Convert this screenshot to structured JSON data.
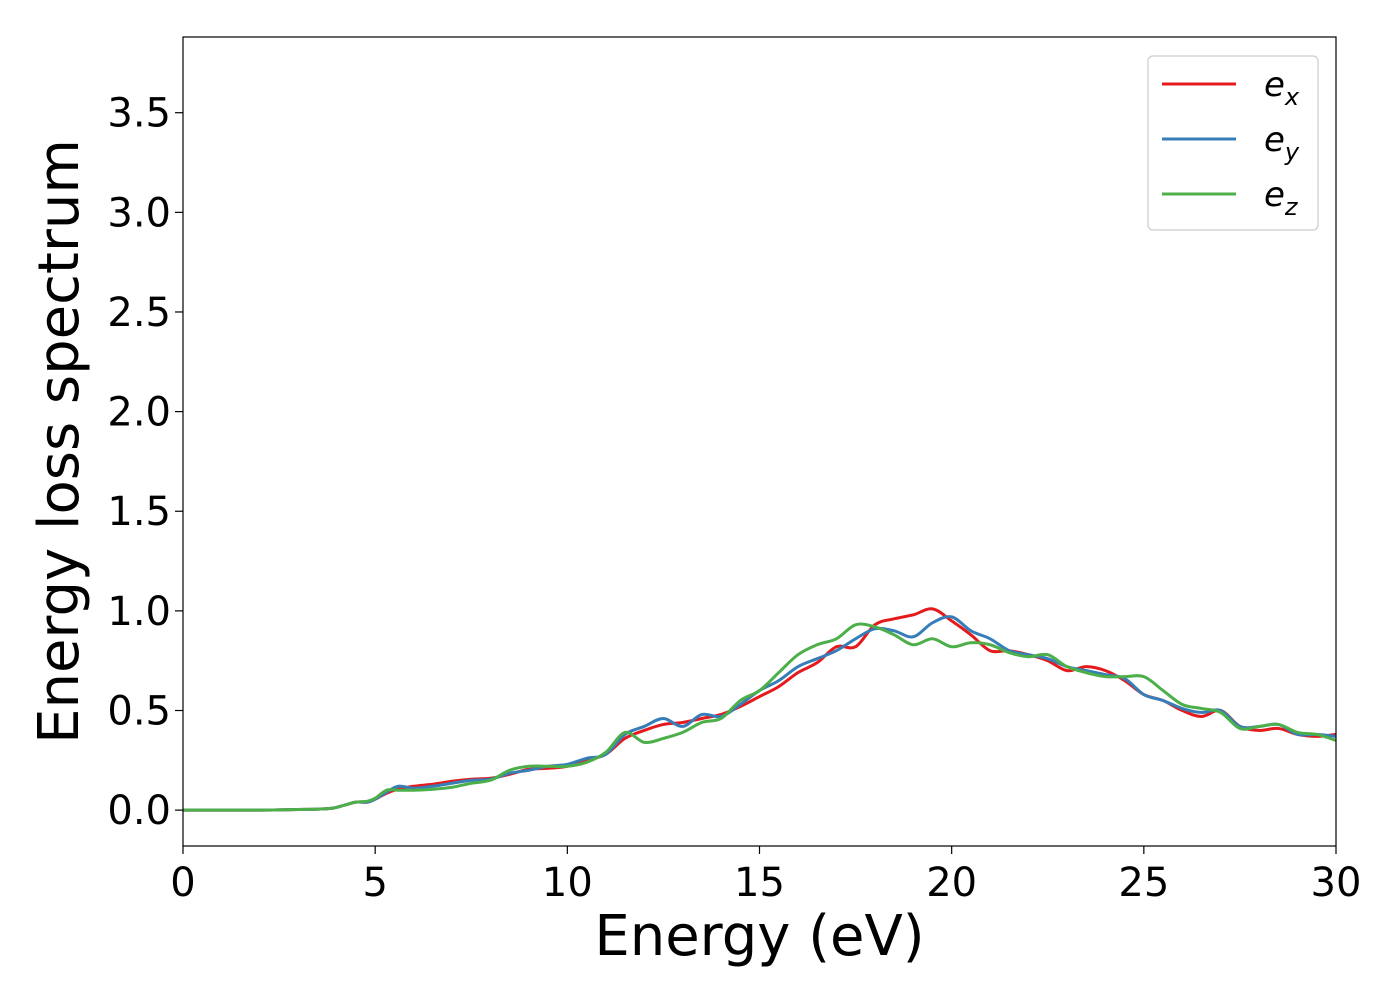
{
  "chart_data": {
    "type": "line",
    "title": "",
    "xlabel": "Energy (eV)",
    "ylabel": "Energy loss spectrum",
    "xlim": [
      0,
      30
    ],
    "ylim": [
      -0.18,
      3.88
    ],
    "xticks": [
      0,
      5,
      10,
      15,
      20,
      25,
      30
    ],
    "xtick_labels": [
      "0",
      "5",
      "10",
      "15",
      "20",
      "25",
      "30"
    ],
    "yticks": [
      0.0,
      0.5,
      1.0,
      1.5,
      2.0,
      2.5,
      3.0,
      3.5
    ],
    "ytick_labels": [
      "0.0",
      "0.5",
      "1.0",
      "1.5",
      "2.0",
      "2.5",
      "3.0",
      "3.5"
    ],
    "grid": false,
    "legend_position": "top-right",
    "x": [
      0,
      1,
      2,
      3,
      3.5,
      3.9,
      4.2,
      4.5,
      4.8,
      5.0,
      5.3,
      5.6,
      6.0,
      6.5,
      7.0,
      7.5,
      8.0,
      8.5,
      9.0,
      9.5,
      10.0,
      10.5,
      11.0,
      11.5,
      12.0,
      12.5,
      13.0,
      13.5,
      14.0,
      14.5,
      15.0,
      15.5,
      16.0,
      16.5,
      17.0,
      17.5,
      18.0,
      18.5,
      19.0,
      19.5,
      20.0,
      20.5,
      21.0,
      21.5,
      22.0,
      22.5,
      23.0,
      23.5,
      24.0,
      24.5,
      25.0,
      25.5,
      26.0,
      26.5,
      27.0,
      27.5,
      28.0,
      28.5,
      29.0,
      29.5,
      30.0
    ],
    "series": [
      {
        "name": "e_x",
        "label_base": "e",
        "label_sub": "x",
        "color": "#e41a1c",
        "values": [
          0.0,
          0.0,
          0.0,
          0.003,
          0.005,
          0.01,
          0.025,
          0.04,
          0.04,
          0.055,
          0.085,
          0.105,
          0.12,
          0.13,
          0.145,
          0.155,
          0.16,
          0.18,
          0.205,
          0.21,
          0.22,
          0.25,
          0.28,
          0.36,
          0.4,
          0.43,
          0.44,
          0.46,
          0.48,
          0.52,
          0.57,
          0.62,
          0.69,
          0.74,
          0.82,
          0.82,
          0.93,
          0.96,
          0.98,
          1.01,
          0.95,
          0.88,
          0.8,
          0.8,
          0.78,
          0.75,
          0.7,
          0.72,
          0.7,
          0.65,
          0.58,
          0.55,
          0.5,
          0.47,
          0.5,
          0.42,
          0.4,
          0.41,
          0.38,
          0.37,
          0.38
        ]
      },
      {
        "name": "e_y",
        "label_base": "e",
        "label_sub": "y",
        "color": "#377eb8",
        "values": [
          0.0,
          0.0,
          0.0,
          0.003,
          0.005,
          0.01,
          0.025,
          0.04,
          0.04,
          0.055,
          0.09,
          0.12,
          0.11,
          0.12,
          0.135,
          0.15,
          0.155,
          0.185,
          0.2,
          0.22,
          0.23,
          0.26,
          0.28,
          0.38,
          0.42,
          0.46,
          0.42,
          0.48,
          0.47,
          0.53,
          0.6,
          0.65,
          0.72,
          0.76,
          0.8,
          0.86,
          0.91,
          0.9,
          0.87,
          0.94,
          0.97,
          0.9,
          0.86,
          0.8,
          0.78,
          0.76,
          0.72,
          0.7,
          0.68,
          0.66,
          0.58,
          0.55,
          0.51,
          0.49,
          0.5,
          0.42,
          0.42,
          0.43,
          0.38,
          0.38,
          0.37
        ]
      },
      {
        "name": "e_z",
        "label_base": "e",
        "label_sub": "z",
        "color": "#4daf4a",
        "values": [
          0.0,
          0.0,
          0.0,
          0.003,
          0.005,
          0.01,
          0.025,
          0.04,
          0.045,
          0.06,
          0.1,
          0.1,
          0.1,
          0.105,
          0.115,
          0.135,
          0.15,
          0.2,
          0.22,
          0.22,
          0.22,
          0.24,
          0.29,
          0.39,
          0.34,
          0.36,
          0.39,
          0.44,
          0.46,
          0.55,
          0.6,
          0.69,
          0.78,
          0.83,
          0.86,
          0.93,
          0.92,
          0.88,
          0.83,
          0.86,
          0.82,
          0.84,
          0.83,
          0.79,
          0.77,
          0.78,
          0.72,
          0.69,
          0.67,
          0.67,
          0.67,
          0.6,
          0.53,
          0.51,
          0.49,
          0.41,
          0.42,
          0.43,
          0.39,
          0.38,
          0.35
        ]
      }
    ]
  }
}
